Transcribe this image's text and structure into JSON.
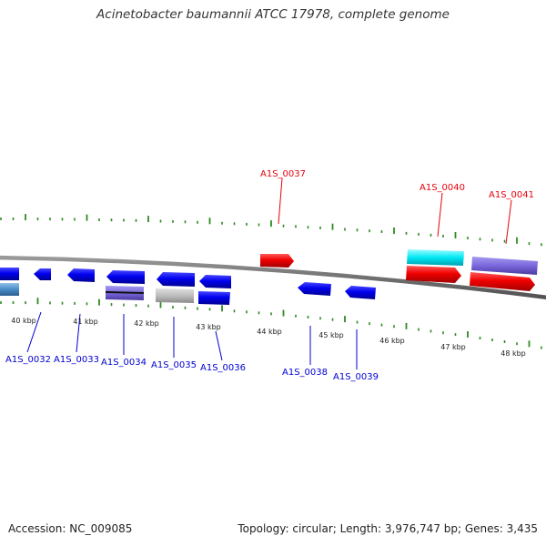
{
  "title": "Acinetobacter baumannii ATCC 17978, complete genome",
  "accession": "Accession: NC_009085",
  "topology": "Topology: circular; Length: 3,976,747 bp; Genes: 3,435",
  "colors": {
    "forward_label": "#e8000b",
    "reverse_label": "#0000d0",
    "backbone": "#777777",
    "tick": "#2e8b22"
  },
  "kbp_labels": [
    "40 kbp",
    "41 kbp",
    "42 kbp",
    "43 kbp",
    "44 kbp",
    "45 kbp",
    "46 kbp",
    "47 kbp",
    "48 kbp"
  ],
  "forward_genes": [
    "A1S_0037",
    "A1S_0040",
    "A1S_0041"
  ],
  "reverse_genes": [
    "A1S_0032",
    "A1S_0033",
    "A1S_0034",
    "A1S_0035",
    "A1S_0036",
    "A1S_0038",
    "A1S_0039"
  ]
}
